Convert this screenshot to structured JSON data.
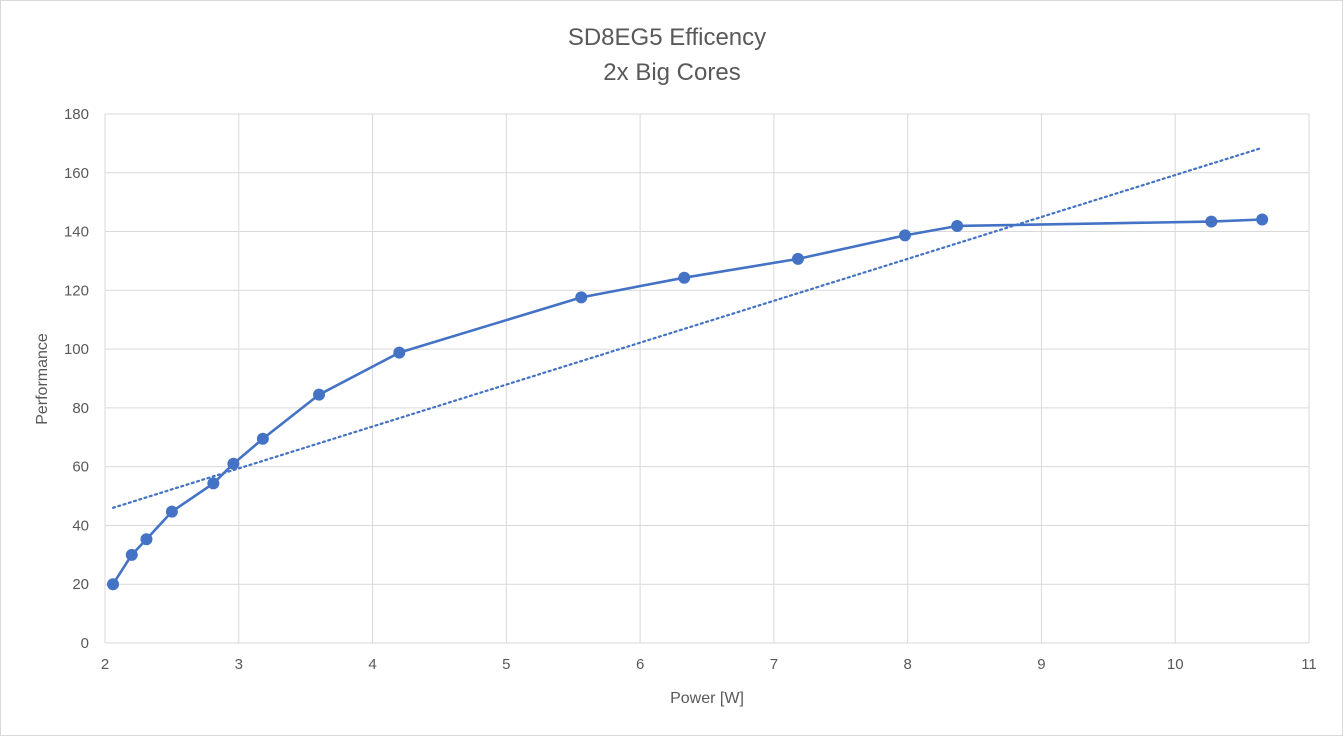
{
  "chart_data": {
    "type": "scatter",
    "title": "SD8EG5 Efficency",
    "subtitle": "2x Big Cores",
    "xlabel": "Power [W]",
    "ylabel": "Performance",
    "xlim": [
      2,
      11
    ],
    "ylim": [
      0,
      180
    ],
    "x_ticks": [
      "2",
      "3",
      "4",
      "5",
      "6",
      "7",
      "8",
      "9",
      "10",
      "11"
    ],
    "y_ticks": [
      "0",
      "20",
      "40",
      "60",
      "80",
      "100",
      "120",
      "140",
      "160",
      "180"
    ],
    "grid": true,
    "legend": "none",
    "series": [
      {
        "x": [
          2.06,
          2.2,
          2.31,
          2.5,
          2.81,
          2.96,
          3.18,
          3.6,
          4.2,
          5.56,
          6.33,
          7.18,
          7.98,
          8.37,
          10.27,
          10.65
        ],
        "y": [
          20,
          30,
          35.3,
          44.7,
          54.3,
          61,
          69.5,
          84.5,
          98.8,
          117.6,
          124.3,
          130.7,
          138.7,
          141.9,
          143.4,
          144.1
        ],
        "style": "line-with-markers",
        "color": "#4472c4"
      }
    ],
    "trendline": {
      "kind": "linear",
      "style": "dotted",
      "color": "#4472c4",
      "x": [
        2.06,
        10.65
      ],
      "y": [
        46,
        168.5
      ]
    }
  }
}
